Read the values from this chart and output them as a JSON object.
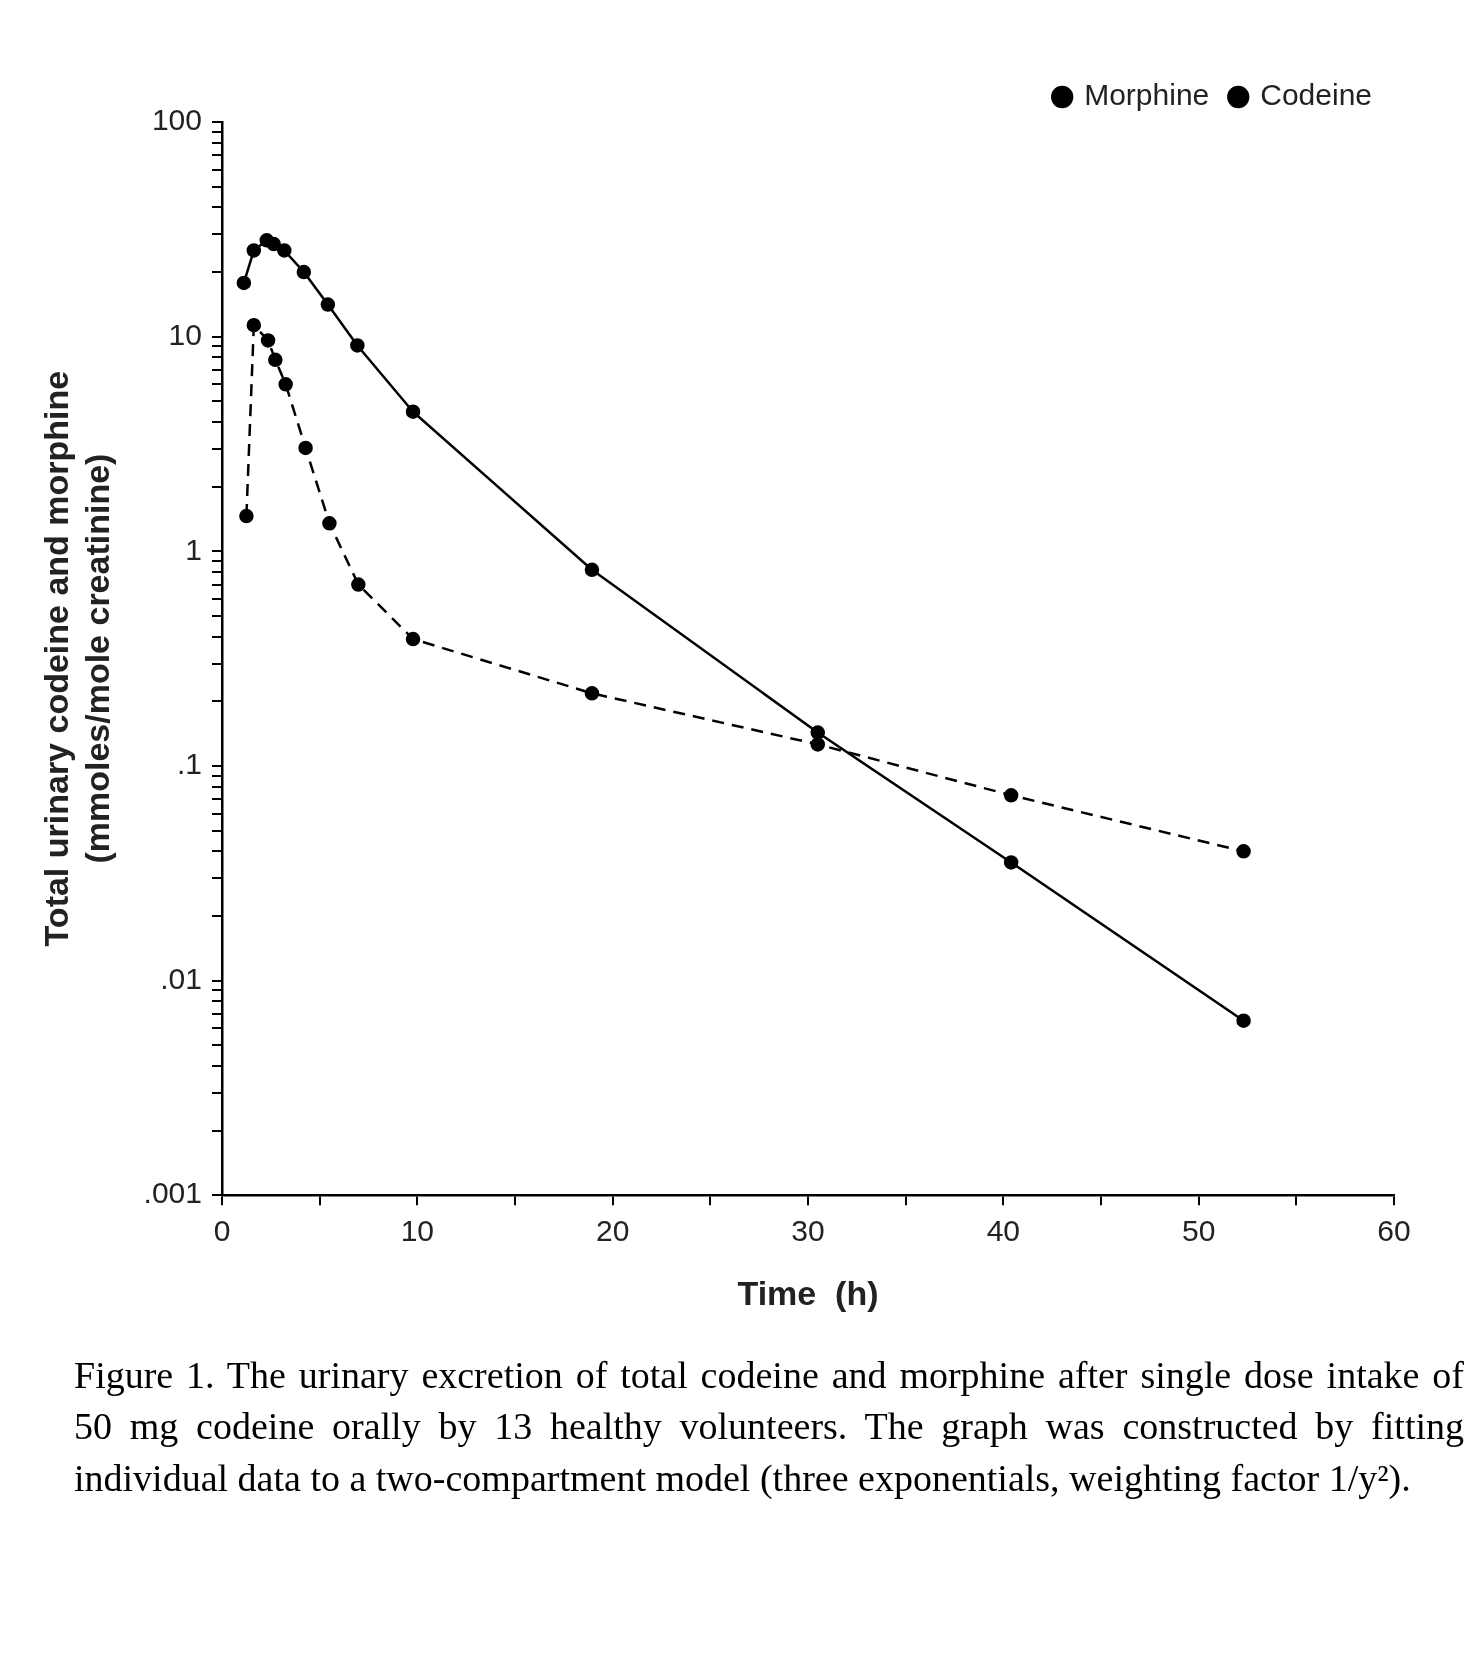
{
  "chart_data": {
    "type": "line",
    "xlabel": "Time  (h)",
    "ylabel": "Total urinary codeine and morphine\n(mmoles/mole creatinine)",
    "log": "y",
    "grid": false,
    "legend": "top right",
    "marker": "circle",
    "xlim": [
      0,
      60
    ],
    "xticks": [
      0,
      {
        "value": 5,
        "label": null
      },
      10,
      {
        "value": 15,
        "label": null
      },
      20,
      {
        "value": 25,
        "label": null
      },
      30,
      {
        "value": 35,
        "label": null
      },
      40,
      {
        "value": 45,
        "label": null
      },
      50,
      {
        "value": 55,
        "label": null
      },
      60
    ],
    "ylim": [
      0.001,
      100
    ],
    "yticks": [
      {
        "value": 0.001,
        "label": ".001"
      },
      {
        "value": 0.002,
        "label": null
      },
      {
        "value": 0.003,
        "label": null
      },
      {
        "value": 0.004,
        "label": null
      },
      {
        "value": 0.005,
        "label": null
      },
      {
        "value": 0.006,
        "label": null
      },
      {
        "value": 0.007,
        "label": null
      },
      {
        "value": 0.008,
        "label": null
      },
      {
        "value": 0.009,
        "label": null
      },
      {
        "value": 0.01,
        "label": ".01"
      },
      {
        "value": 0.02,
        "label": null
      },
      {
        "value": 0.03,
        "label": null
      },
      {
        "value": 0.04,
        "label": null
      },
      {
        "value": 0.05,
        "label": null
      },
      {
        "value": 0.06,
        "label": null
      },
      {
        "value": 0.07,
        "label": null
      },
      {
        "value": 0.08,
        "label": null
      },
      {
        "value": 0.09,
        "label": null
      },
      {
        "value": 0.1,
        "label": ".1"
      },
      {
        "value": 0.2,
        "label": null
      },
      {
        "value": 0.3,
        "label": null
      },
      {
        "value": 0.4,
        "label": null
      },
      {
        "value": 0.5,
        "label": null
      },
      {
        "value": 0.6,
        "label": null
      },
      {
        "value": 0.7,
        "label": null
      },
      {
        "value": 0.8,
        "label": null
      },
      {
        "value": 0.9,
        "label": null
      },
      1,
      {
        "value": 2,
        "label": null
      },
      {
        "value": 3,
        "label": null
      },
      {
        "value": 4,
        "label": null
      },
      {
        "value": 5,
        "label": null
      },
      {
        "value": 6,
        "label": null
      },
      {
        "value": 7,
        "label": null
      },
      {
        "value": 8,
        "label": null
      },
      {
        "value": 9,
        "label": null
      },
      10,
      {
        "value": 20,
        "label": null
      },
      {
        "value": 30,
        "label": null
      },
      {
        "value": 40,
        "label": null
      },
      {
        "value": 50,
        "label": null
      },
      {
        "value": 60,
        "label": null
      },
      {
        "value": 70,
        "label": null
      },
      {
        "value": 80,
        "label": null
      },
      {
        "value": 90,
        "label": null
      },
      100
    ],
    "series": [
      {
        "name": "Morphine",
        "color": "#000000",
        "line_style": "dashed",
        "x": [
          1.25,
          1.63,
          2.36,
          2.73,
          3.26,
          4.28,
          5.5,
          6.98,
          9.78,
          18.94,
          30.5,
          40.4,
          52.3
        ],
        "values": [
          1.46,
          11.3,
          9.6,
          7.8,
          6.0,
          3.03,
          1.35,
          0.7,
          0.39,
          0.218,
          0.126,
          0.073,
          0.04
        ]
      },
      {
        "name": "Codeine",
        "color": "#000000",
        "line_style": "solid",
        "x": [
          1.12,
          1.63,
          2.29,
          2.65,
          3.19,
          4.19,
          5.42,
          6.93,
          9.78,
          18.94,
          30.5,
          40.4,
          52.3
        ],
        "values": [
          17.8,
          25.2,
          28.1,
          27,
          25.2,
          20,
          14.1,
          9.1,
          4.47,
          0.82,
          0.143,
          0.0355,
          0.0065
        ]
      }
    ],
    "annotations": [
      "Figure 1. The urinary excretion of total codeine and morphine after single dose intake of 50 mg codeine orally by 13 healthy volunteers. The graph was constructed by fitting individual data to a two-compartment model (three exponentials, weighting factor 1/y²)."
    ]
  }
}
